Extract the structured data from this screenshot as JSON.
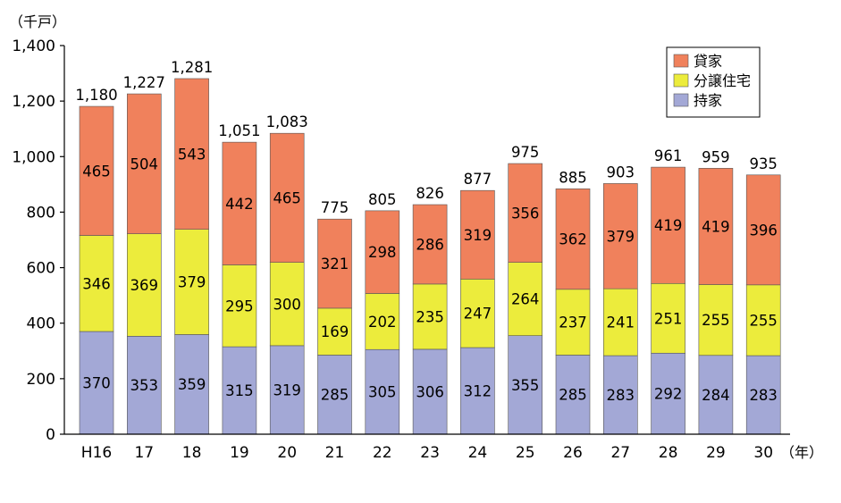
{
  "chart_data": {
    "type": "bar",
    "stacked": true,
    "title": "",
    "y_unit_label": "（千戸）",
    "x_unit_label": "（年）",
    "xlabel": "",
    "ylabel": "",
    "ylim": [
      0,
      1400
    ],
    "y_ticks": [
      0,
      200,
      400,
      600,
      800,
      1000,
      1200,
      1400
    ],
    "y_tick_labels": [
      "0",
      "200",
      "400",
      "600",
      "800",
      "1,000",
      "1,200",
      "1,400"
    ],
    "categories": [
      "H16",
      "17",
      "18",
      "19",
      "20",
      "21",
      "22",
      "23",
      "24",
      "25",
      "26",
      "27",
      "28",
      "29",
      "30"
    ],
    "series": [
      {
        "name": "持家",
        "color": "#a3a8d6",
        "values": [
          370,
          353,
          359,
          315,
          319,
          285,
          305,
          306,
          312,
          355,
          285,
          283,
          292,
          284,
          283
        ]
      },
      {
        "name": "分譲住宅",
        "color": "#ecec3c",
        "values": [
          346,
          369,
          379,
          295,
          300,
          169,
          202,
          235,
          247,
          264,
          237,
          241,
          251,
          255,
          255
        ]
      },
      {
        "name": "貸家",
        "color": "#f0815c",
        "values": [
          465,
          504,
          543,
          442,
          465,
          321,
          298,
          286,
          319,
          356,
          362,
          379,
          419,
          419,
          396
        ]
      }
    ],
    "totals": [
      "1,180",
      "1,227",
      "1,281",
      "1,051",
      "1,083",
      "775",
      "805",
      "826",
      "877",
      "975",
      "885",
      "903",
      "961",
      "959",
      "935"
    ],
    "legend": {
      "position": "top-right",
      "entries": [
        "貸家",
        "分譲住宅",
        "持家"
      ]
    },
    "grid": false
  }
}
